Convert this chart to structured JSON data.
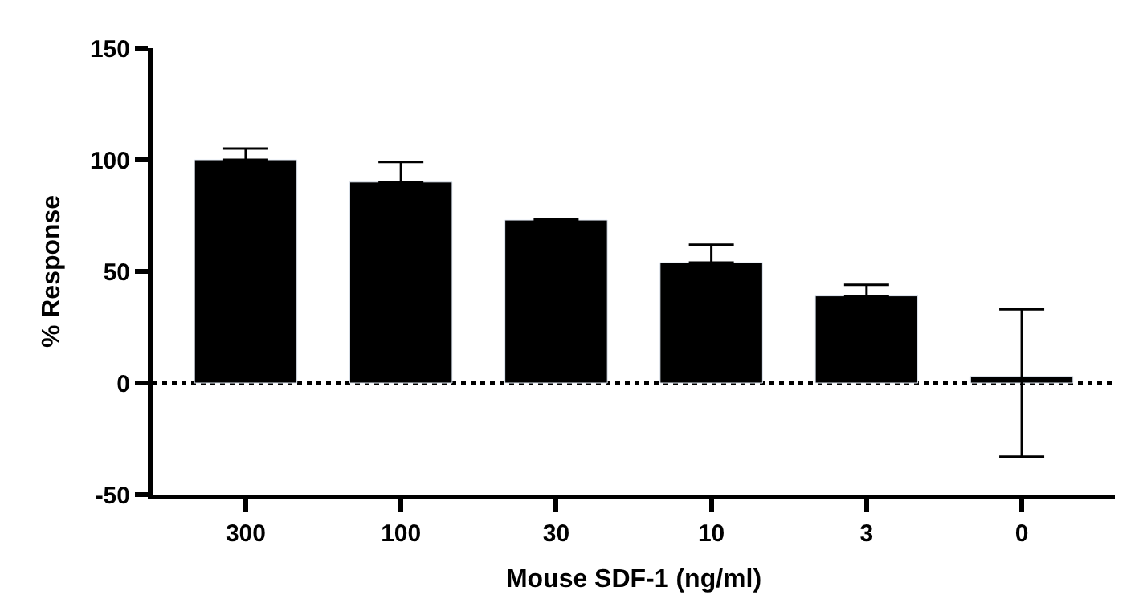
{
  "chart_data": {
    "type": "bar",
    "xlabel": "Mouse SDF-1 (ng/ml)",
    "ylabel": "% Response",
    "categories": [
      "300",
      "100",
      "30",
      "10",
      "3",
      "0"
    ],
    "values": [
      100,
      90,
      73,
      54,
      39,
      3
    ],
    "errors": [
      [
        100,
        105
      ],
      [
        90,
        99
      ],
      [
        73,
        73.5
      ],
      [
        54,
        62
      ],
      [
        39,
        44
      ],
      [
        -33,
        33
      ]
    ],
    "color": "#000000",
    "ylim": [
      -50,
      150
    ],
    "yticks": [
      -50,
      0,
      50,
      100,
      150
    ],
    "ref_lines": [
      {
        "axis": "y",
        "value": 0,
        "line_style": "dotted",
        "color": "#000000"
      }
    ],
    "grid": false,
    "legend": false
  }
}
